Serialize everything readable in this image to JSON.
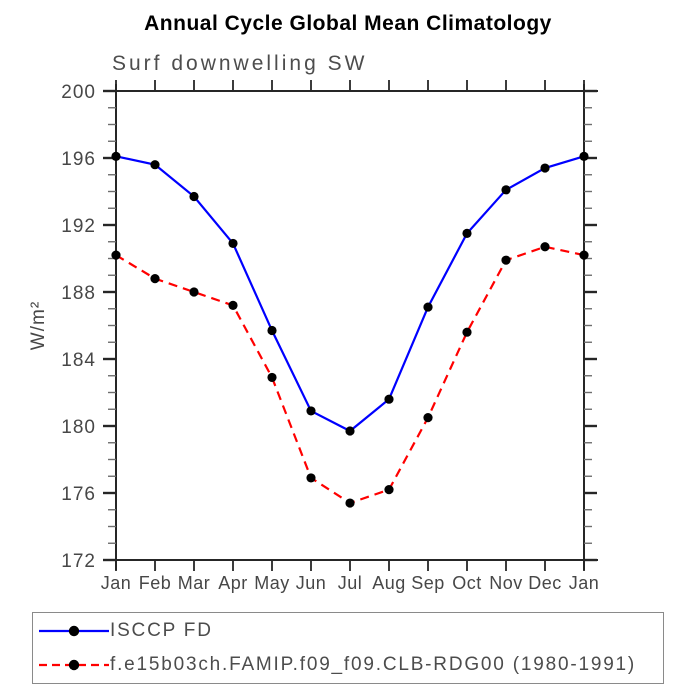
{
  "chart_data": {
    "type": "line",
    "title": "Annual Cycle Global Mean Climatology",
    "subtitle": "Surf downwelling SW",
    "ylabel": "W/m²",
    "xlabel": "",
    "categories": [
      "Jan",
      "Feb",
      "Mar",
      "Apr",
      "May",
      "Jun",
      "Jul",
      "Aug",
      "Sep",
      "Oct",
      "Nov",
      "Dec",
      "Jan"
    ],
    "series": [
      {
        "name": "ISCCP FD",
        "color": "#0000ff",
        "style": "solid",
        "marker": "circle",
        "marker_color": "#000000",
        "values": [
          196.1,
          195.6,
          193.7,
          190.9,
          185.7,
          180.9,
          179.7,
          181.6,
          187.1,
          191.5,
          194.1,
          195.4,
          196.1
        ]
      },
      {
        "name": "f.e15b03ch.FAMIP.f09_f09.CLB-RDG00 (1980-1991)",
        "color": "#ff0000",
        "style": "dashed",
        "marker": "circle",
        "marker_color": "#000000",
        "values": [
          190.2,
          188.8,
          188.0,
          187.2,
          182.9,
          176.9,
          175.4,
          176.2,
          180.5,
          185.6,
          189.9,
          190.7,
          190.2
        ]
      }
    ],
    "ylim": [
      172,
      200
    ],
    "ytick_major": 4,
    "ytick_minor": 1,
    "grid": false,
    "legend_position": "bottom",
    "axis_color": "#262626",
    "label_color": "#474747"
  }
}
